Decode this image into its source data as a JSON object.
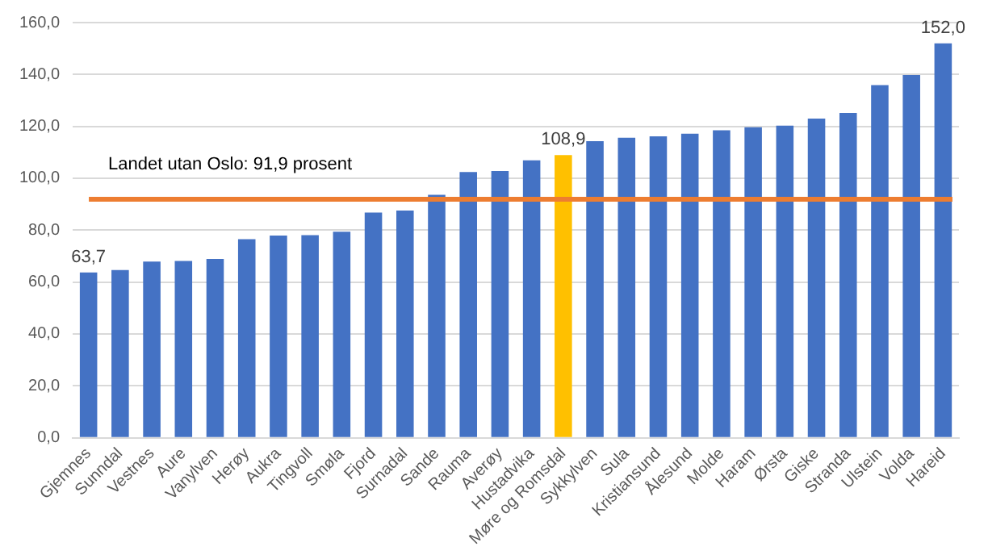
{
  "chart_data": {
    "type": "bar",
    "categories": [
      "Gjemnes",
      "Sunndal",
      "Vestnes",
      "Aure",
      "Vanylven",
      "Herøy",
      "Aukra",
      "Tingvoll",
      "Smøla",
      "Fjord",
      "Surnadal",
      "Sande",
      "Rauma",
      "Averøy",
      "Hustadvika",
      "Møre og Romsdal",
      "Sykkylven",
      "Sula",
      "Kristiansund",
      "Ålesund",
      "Molde",
      "Haram",
      "Ørsta",
      "Giske",
      "Stranda",
      "Ulstein",
      "Volda",
      "Hareid"
    ],
    "values": [
      63.7,
      64.6,
      67.9,
      68.1,
      68.9,
      76.5,
      77.9,
      78.1,
      79.4,
      86.8,
      87.6,
      93.6,
      102.4,
      102.8,
      106.9,
      108.9,
      114.3,
      115.6,
      116.2,
      117.2,
      118.5,
      119.7,
      120.3,
      123.0,
      125.2,
      135.9,
      139.8,
      152.0
    ],
    "colors": [
      "#4472c4",
      "#4472c4",
      "#4472c4",
      "#4472c4",
      "#4472c4",
      "#4472c4",
      "#4472c4",
      "#4472c4",
      "#4472c4",
      "#4472c4",
      "#4472c4",
      "#4472c4",
      "#4472c4",
      "#4472c4",
      "#4472c4",
      "#ffc000",
      "#4472c4",
      "#4472c4",
      "#4472c4",
      "#4472c4",
      "#4472c4",
      "#4472c4",
      "#4472c4",
      "#4472c4",
      "#4472c4",
      "#4472c4",
      "#4472c4",
      "#4472c4"
    ],
    "value_labels": [
      "63,7",
      null,
      null,
      null,
      null,
      null,
      null,
      null,
      null,
      null,
      null,
      null,
      null,
      null,
      null,
      "108,9",
      null,
      null,
      null,
      null,
      null,
      null,
      null,
      null,
      null,
      null,
      null,
      "152,0"
    ],
    "ylim": [
      0,
      160
    ],
    "yticks": [
      {
        "value": 0,
        "label": "0,0"
      },
      {
        "value": 20,
        "label": "20,0"
      },
      {
        "value": 40,
        "label": "40,0"
      },
      {
        "value": 60,
        "label": "60,0"
      },
      {
        "value": 80,
        "label": "80,0"
      },
      {
        "value": 100,
        "label": "100,0"
      },
      {
        "value": 120,
        "label": "120,0"
      },
      {
        "value": 140,
        "label": "140,0"
      },
      {
        "value": 160,
        "label": "160,0"
      }
    ],
    "ref_lines": [
      {
        "axis": "y",
        "value": 91.9,
        "label": "Landet utan Oslo: 91,9 prosent",
        "color": "#ed7d31"
      }
    ],
    "grid": "y",
    "legend": false
  }
}
